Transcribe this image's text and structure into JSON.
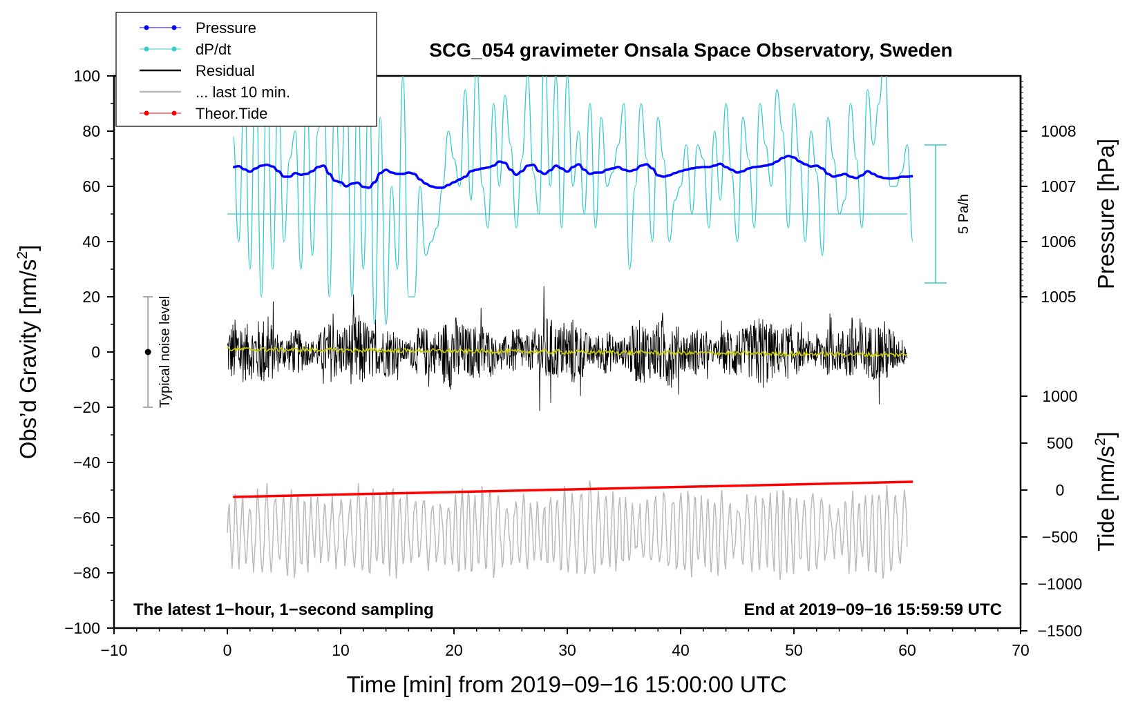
{
  "chart_data": {
    "type": "line",
    "title": "SCG_054 gravimeter Onsala Space Observatory, Sweden",
    "xlabel": "Time [min] from 2019−09−16 15:00:00 UTC",
    "ylabel_left": "Obs’d Gravity [nm/s",
    "ylabel_left_sup": "2",
    "ylabel_left_end": "]",
    "ylabel_pressure": "Pressure [hPa]",
    "ylabel_tide": "Tide [nm/s",
    "ylabel_tide_sup": "2",
    "ylabel_tide_end": "]",
    "xlim": [
      -10,
      70
    ],
    "ylim": [
      -100,
      100
    ],
    "x_ticks": [
      -10,
      0,
      10,
      20,
      30,
      40,
      50,
      60,
      70
    ],
    "x_tick_labels": [
      "−10",
      "0",
      "10",
      "20",
      "30",
      "40",
      "50",
      "60",
      "70"
    ],
    "y_ticks": [
      100,
      80,
      60,
      40,
      20,
      0,
      -20,
      -40,
      -60,
      -80,
      -100
    ],
    "y_tick_labels": [
      "100",
      "80",
      "60",
      "40",
      "20",
      "0",
      "−20",
      "−40",
      "−60",
      "−80",
      "−100"
    ],
    "pressure_axis": {
      "ticks": [
        1008,
        1007,
        1006,
        1005
      ],
      "tick_labels": [
        "1008",
        "1007",
        "1006",
        "1005"
      ],
      "gravity_at_1008": 80,
      "gravity_per_hpa": 20
    },
    "tide_axis": {
      "ticks": [
        1000,
        500,
        0,
        -500,
        -1000,
        -1500
      ],
      "tick_labels": [
        "1000",
        "500",
        "0",
        "−500",
        "−1000",
        "−1500"
      ],
      "gravity_at_0": -50,
      "gravity_per_500": 17
    },
    "annotation_left": "The latest 1−hour, 1−second sampling",
    "annotation_right": "End at 2019−09−16 15:59:59 UTC",
    "noise_bar": {
      "label": "Typical noise level",
      "x": -7,
      "center": 0,
      "half_range": 20
    },
    "scale_bar": {
      "label": "5 Pa/h",
      "x": 62.5,
      "low": 25,
      "high": 75
    },
    "legend": [
      {
        "label": "Pressure",
        "color": "#0000ff",
        "marker": true,
        "width": 1
      },
      {
        "label": "dP/dt",
        "color": "#33cccc",
        "marker": true,
        "width": 1
      },
      {
        "label": "Residual",
        "color": "#000000",
        "marker": false,
        "width": 2.5
      },
      {
        "label": "... last 10 min.",
        "color": "#bbbbbb",
        "marker": false,
        "width": 2.5
      },
      {
        "label": "Theor.Tide",
        "color": "#ff0000",
        "marker": true,
        "width": 1
      }
    ],
    "colors": {
      "pressure": "#0000ff",
      "dpdt": "#33cccc",
      "residual": "#000000",
      "residual_mean": "#cccc00",
      "last10": "#bbbbbb",
      "tide": "#ff0000"
    },
    "series": [
      {
        "name": "Pressure",
        "x": [
          0.5,
          1,
          1.5,
          2,
          2.5,
          3,
          3.5,
          4,
          4.5,
          5,
          5.5,
          6,
          6.5,
          7,
          7.5,
          8,
          8.5,
          9,
          9.5,
          10,
          10.5,
          11,
          11.5,
          12,
          12.5,
          13,
          13.5,
          14,
          14.5,
          15,
          15.5,
          16,
          16.5,
          17,
          17.5,
          18,
          18.5,
          19,
          19.5,
          20,
          20.5,
          21,
          21.5,
          22,
          22.5,
          23,
          23.5,
          24,
          24.5,
          25,
          25.5,
          26,
          26.5,
          27,
          27.5,
          28,
          28.5,
          29,
          29.5,
          30,
          30.5,
          31,
          31.5,
          32,
          32.5,
          33,
          33.5,
          34,
          34.5,
          35,
          35.5,
          36,
          36.5,
          37,
          37.5,
          38,
          38.5,
          39,
          39.5,
          40,
          40.5,
          41,
          41.5,
          42,
          42.5,
          43,
          43.5,
          44,
          44.5,
          45,
          45.5,
          46,
          46.5,
          47,
          47.5,
          48,
          48.5,
          49,
          49.5,
          50,
          50.5,
          51,
          51.5,
          52,
          52.5,
          53,
          53.5,
          54,
          54.5,
          55,
          55.5,
          56,
          56.5,
          57,
          57.5,
          58,
          58.5,
          59,
          59.5,
          60,
          60.5
        ],
        "values": [
          67,
          67.3,
          66.2,
          65.3,
          66.5,
          67.5,
          67.8,
          67.2,
          65.5,
          63.5,
          63.5,
          64.8,
          64.2,
          64.5,
          65.5,
          67,
          67.5,
          64.5,
          62,
          61.5,
          60,
          61,
          61.3,
          59.8,
          59.5,
          61.5,
          64.8,
          66,
          65,
          64.5,
          64.5,
          65,
          64.5,
          62.5,
          61,
          60,
          59.5,
          59.5,
          60.5,
          61.5,
          62.5,
          63.5,
          65.5,
          66,
          66.5,
          66.8,
          67.5,
          69,
          68.5,
          66,
          64.2,
          65.5,
          67.5,
          67.8,
          65.5,
          64.5,
          65.8,
          67.5,
          66.5,
          65.3,
          67,
          68,
          66,
          64.5,
          65,
          65,
          66,
          66.5,
          67,
          66,
          65.5,
          66,
          67.5,
          68,
          66.5,
          64,
          63.5,
          64,
          64.8,
          65.5,
          66,
          66.5,
          66.8,
          67,
          67,
          67.5,
          68.2,
          67,
          66,
          65,
          65.5,
          66.5,
          67,
          67.2,
          67.5,
          68,
          69,
          70.3,
          71,
          70.5,
          69,
          68,
          67.2,
          67.5,
          66.5,
          64.5,
          63.5,
          64,
          64.5,
          63.5,
          63,
          64,
          65.5,
          64.5,
          63.5,
          63,
          62.8,
          63,
          63.5,
          63.5,
          63.7
        ]
      },
      {
        "name": "dP/dt",
        "x": [
          0.5,
          1,
          1.5,
          2,
          2.5,
          3,
          3.5,
          4,
          4.5,
          5,
          5.5,
          6,
          6.5,
          7,
          7.5,
          8,
          8.5,
          9,
          9.5,
          10,
          10.5,
          11,
          11.5,
          12,
          12.5,
          13,
          13.5,
          14,
          14.5,
          15,
          15.5,
          16,
          16.5,
          17,
          17.5,
          18,
          18.5,
          19,
          19.5,
          20,
          20.5,
          21,
          21.5,
          22,
          22.5,
          23,
          23.5,
          24,
          24.5,
          25,
          25.5,
          26,
          26.5,
          27,
          27.5,
          28,
          28.5,
          29,
          29.5,
          30,
          30.5,
          31,
          31.5,
          32,
          32.5,
          33,
          33.5,
          34,
          34.5,
          35,
          35.5,
          36,
          36.5,
          37,
          37.5,
          38,
          38.5,
          39,
          39.5,
          40,
          40.5,
          41,
          41.5,
          42,
          42.5,
          43,
          43.5,
          44,
          44.5,
          45,
          45.5,
          46,
          46.5,
          47,
          47.5,
          48,
          48.5,
          49,
          49.5,
          50,
          50.5,
          51,
          51.5,
          52,
          52.5,
          53,
          53.5,
          54,
          54.5,
          55,
          55.5,
          56,
          56.5,
          57,
          57.5,
          58,
          58.5,
          59,
          59.5,
          60,
          60.5
        ],
        "values": [
          78,
          40,
          95,
          30,
          105,
          20,
          100,
          30,
          95,
          40,
          70,
          80,
          30,
          95,
          35,
          80,
          100,
          20,
          95,
          60,
          100,
          20,
          95,
          30,
          100,
          10,
          85,
          10,
          60,
          30,
          100,
          20,
          20,
          60,
          35,
          40,
          45,
          60,
          80,
          70,
          60,
          95,
          55,
          105,
          60,
          45,
          90,
          60,
          93,
          75,
          45,
          70,
          100,
          65,
          50,
          110,
          60,
          100,
          45,
          100,
          60,
          80,
          50,
          90,
          45,
          85,
          60,
          65,
          75,
          90,
          30,
          60,
          90,
          70,
          40,
          85,
          70,
          40,
          55,
          60,
          75,
          50,
          75,
          70,
          45,
          80,
          55,
          90,
          65,
          40,
          85,
          70,
          45,
          90,
          75,
          60,
          95,
          80,
          45,
          90,
          70,
          40,
          80,
          65,
          35,
          85,
          70,
          50,
          55,
          90,
          70,
          45,
          95,
          75,
          90,
          110,
          60,
          60,
          65,
          75,
          40
        ]
      },
      {
        "name": "Residual",
        "summary": "1-second sampled noise between about -27 and +30 nm/s2 centred near 0, minutes 0 to 60",
        "mean_start": 1,
        "mean_end": -1
      },
      {
        "name": "... last 10 min.",
        "summary": "oscillating trace between about -88 and -38 nm/s2 (gravity axis), minutes 0 to 60",
        "center": -65
      },
      {
        "name": "Theor.Tide",
        "x": [
          0.5,
          60.5
        ],
        "values": [
          -52.5,
          -47
        ]
      }
    ]
  }
}
